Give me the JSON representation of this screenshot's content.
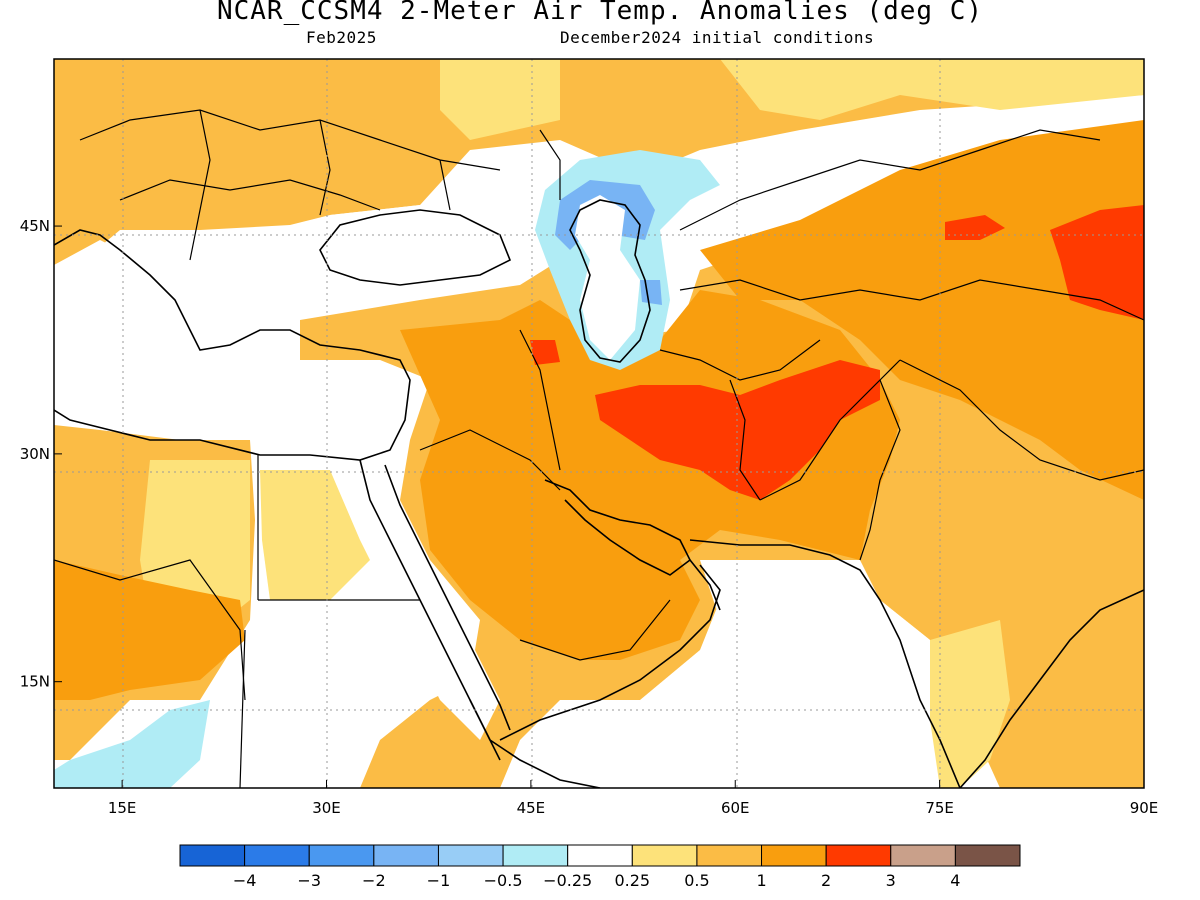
{
  "title": "NCAR_CCSM4 2-Meter Air Temp. Anomalies (deg C)",
  "valid_month": "Feb2025",
  "init": "December2024 initial conditions",
  "map": {
    "lon_range": [
      10,
      90
    ],
    "lat_range": [
      8,
      56
    ],
    "lon_ticks": [
      {
        "value": 15,
        "label": "15E"
      },
      {
        "value": 30,
        "label": "30E"
      },
      {
        "value": 45,
        "label": "45E"
      },
      {
        "value": 60,
        "label": "60E"
      },
      {
        "value": 75,
        "label": "75E"
      },
      {
        "value": 90,
        "label": "90E"
      }
    ],
    "lat_ticks": [
      {
        "value": 45,
        "label": "45N"
      },
      {
        "value": 30,
        "label": "30N"
      },
      {
        "value": 15,
        "label": "15N"
      }
    ]
  },
  "colorbar": {
    "colors": [
      "#1764d6",
      "#2b7be8",
      "#4a98f0",
      "#78b4f4",
      "#98cdf6",
      "#b0ecf5",
      "#ffffff",
      "#fde27a",
      "#fbbc45",
      "#f99e0e",
      "#ff3a00",
      "#c9a08a",
      "#7a5447"
    ],
    "labels": [
      "-4",
      "-3",
      "-2",
      "-1",
      "-0.5",
      "-0.25",
      "0.25",
      "0.5",
      "1",
      "2",
      "3",
      "4"
    ]
  }
}
